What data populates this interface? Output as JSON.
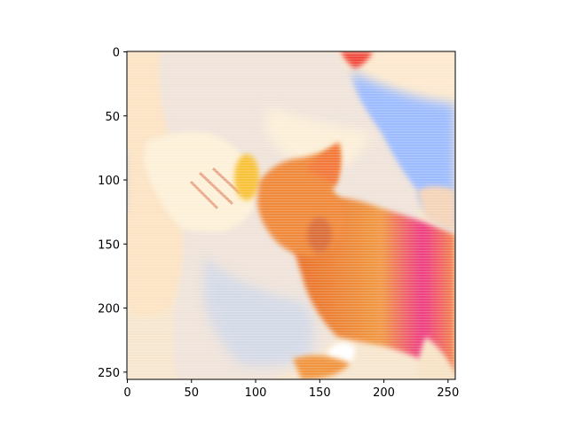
{
  "chart_data": {
    "type": "image",
    "title": "",
    "xlabel": "",
    "ylabel": "",
    "xlim": [
      0,
      256
    ],
    "ylim": [
      256,
      0
    ],
    "x_ticks": [
      0,
      50,
      100,
      150,
      200,
      250
    ],
    "y_ticks": [
      0,
      50,
      100,
      150,
      200,
      250
    ],
    "grid": false,
    "legend": "none",
    "image_content": "stylized photo of an orange cat sniffing a treat held in a person's hand; person wears a light shirt",
    "colors": {
      "cat_orange": "#f08a3c",
      "cat_magenta": "#e8287a",
      "shirt_light": "#e9ddd3",
      "skin_pale": "#fbe9c8",
      "sky_blue": "#8fb6ff",
      "treat_yellow": "#f8c23a"
    }
  }
}
